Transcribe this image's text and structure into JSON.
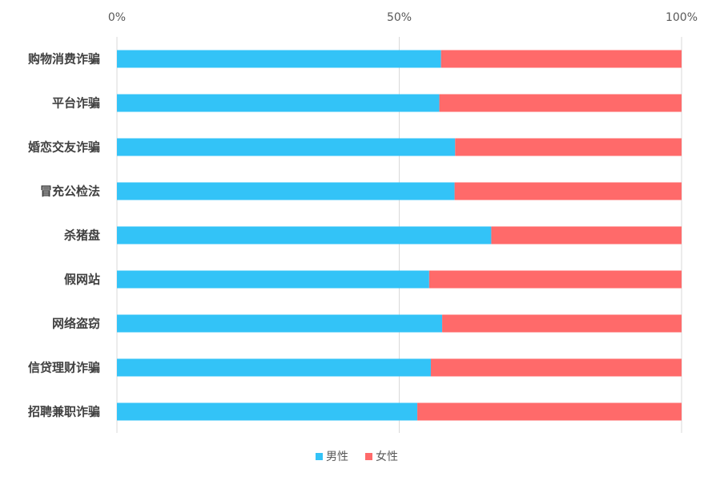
{
  "chart_data": {
    "type": "bar",
    "orientation": "horizontal",
    "stacked": "percent",
    "categories": [
      "购物消费诈骗",
      "平台诈骗",
      "婚恋交友诈骗",
      "冒充公检法",
      "杀猪盘",
      "假网站",
      "网络盗窃",
      "信贷理财诈骗",
      "招聘兼职诈骗"
    ],
    "series": [
      {
        "name": "男性",
        "color": "#33C3F7",
        "values": [
          57.4,
          57.1,
          59.9,
          59.8,
          66.3,
          55.3,
          57.6,
          55.6,
          53.2
        ]
      },
      {
        "name": "女性",
        "color": "#FF6A6A",
        "values": [
          42.6,
          42.9,
          40.1,
          40.2,
          33.7,
          44.7,
          42.4,
          44.4,
          46.8
        ]
      }
    ],
    "x_ticks": [
      "0%",
      "50%",
      "100%"
    ],
    "xlim": [
      0,
      100
    ],
    "grid": true,
    "legend_position": "bottom"
  }
}
